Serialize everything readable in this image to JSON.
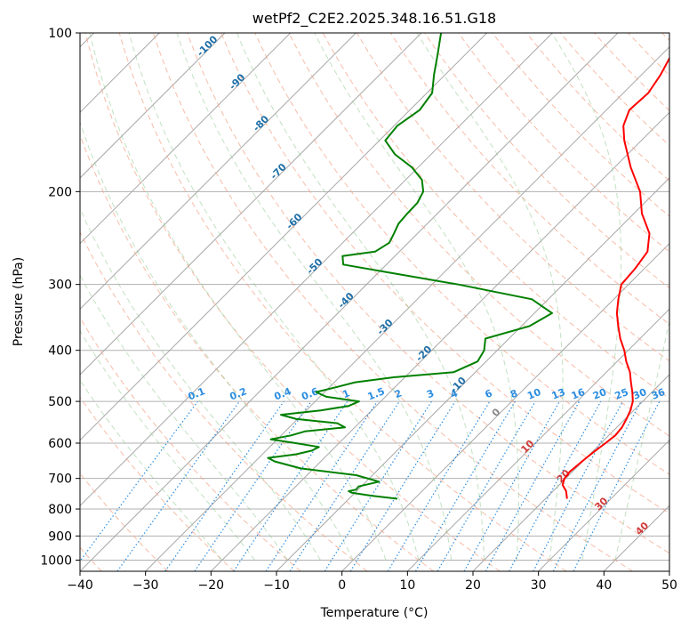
{
  "chart_data": {
    "type": "line",
    "title": "wetPf2_C2E2.2025.348.16.51.G18",
    "xlabel": "Temperature (°C)",
    "ylabel": "Pressure (hPa)",
    "xlim": [
      -40,
      50
    ],
    "ylim": [
      1050,
      100
    ],
    "y_scale": "log",
    "grid": true,
    "x_ticks": [
      -40,
      -30,
      -20,
      -10,
      0,
      10,
      20,
      30,
      40,
      50
    ],
    "y_ticks": [
      100,
      200,
      300,
      400,
      500,
      600,
      700,
      800,
      900,
      1000
    ],
    "series": [
      {
        "color": "#ff0000",
        "pressure": [
          765,
          740,
          720,
          700,
          680,
          660,
          640,
          620,
          600,
          580,
          560,
          540,
          520,
          500,
          480,
          460,
          440,
          420,
          400,
          380,
          360,
          340,
          320,
          300,
          280,
          260,
          240,
          220,
          200,
          180,
          160,
          150,
          140,
          130,
          120,
          110,
          100
        ],
        "values": [
          23.3,
          22.0,
          20.5,
          19.8,
          19.6,
          19.8,
          20.0,
          20.3,
          20.7,
          21.0,
          20.8,
          20.2,
          19.5,
          18.5,
          17.0,
          15.3,
          13.6,
          11.4,
          9.4,
          7.0,
          4.8,
          2.6,
          0.7,
          -1.1,
          -1.4,
          -2.1,
          -4.6,
          -8.8,
          -12.4,
          -17.5,
          -22.6,
          -25.0,
          -26.5,
          -26.2,
          -27.1,
          -28.5,
          -30.0
        ]
      },
      {
        "color": "#008000",
        "pressure": [
          765,
          755,
          745,
          740,
          735,
          725,
          710,
          690,
          670,
          650,
          640,
          630,
          620,
          610,
          600,
          590,
          580,
          570,
          560,
          550,
          540,
          530,
          520,
          510,
          500,
          490,
          480,
          470,
          460,
          450,
          440,
          420,
          400,
          380,
          360,
          340,
          320,
          300,
          285,
          275,
          265,
          260,
          250,
          240,
          230,
          220,
          210,
          200,
          190,
          180,
          170,
          160,
          150,
          140,
          130,
          120,
          110,
          100
        ],
        "values": [
          -2.6,
          -7.0,
          -10.5,
          -11.2,
          -10.3,
          -10.4,
          -8.0,
          -12.5,
          -22.0,
          -27.0,
          -28.6,
          -24.9,
          -23.0,
          -22.5,
          -26.6,
          -31.0,
          -28.5,
          -27.0,
          -21.5,
          -23.3,
          -30.2,
          -33.2,
          -27.8,
          -24.2,
          -23.3,
          -29.0,
          -31.3,
          -29.0,
          -26.8,
          -21.7,
          -13.3,
          -11.3,
          -12.0,
          -13.6,
          -8.8,
          -7.3,
          -12.5,
          -26.0,
          -38.2,
          -46.6,
          -48.0,
          -43.7,
          -42.9,
          -43.6,
          -44.4,
          -44.6,
          -44.7,
          -45.5,
          -47.5,
          -50.9,
          -55.5,
          -59.1,
          -59.5,
          -58.5,
          -59.2,
          -61.7,
          -64.2,
          -67.0
        ]
      }
    ],
    "dry_adiabat_labels": [
      "-100",
      "-90",
      "-80",
      "-70",
      "-60",
      "-50",
      "-40",
      "-30",
      "-20",
      "-10"
    ],
    "isotherm_labels": [
      "0",
      "10",
      "20",
      "30",
      "40"
    ],
    "mixing_ratio_labels": [
      "0.1",
      "0.2",
      "0.4",
      "0.6",
      "1",
      "1.5",
      "2",
      "3",
      "4",
      "6",
      "8",
      "10",
      "13",
      "16",
      "20",
      "25",
      "30",
      "36"
    ],
    "mixing_ratio_values": [
      0.1,
      0.2,
      0.4,
      0.6,
      1,
      1.5,
      2,
      3,
      4,
      6,
      8,
      10,
      13,
      16,
      20,
      25,
      30,
      36
    ]
  }
}
